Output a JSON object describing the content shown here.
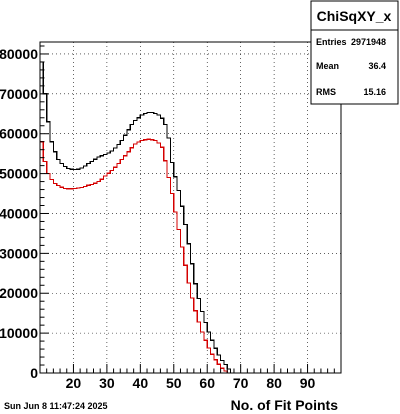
{
  "timestamp": "Sun Jun  8 11:47:24 2025",
  "stats_box": {
    "title": "ChiSqXY_x",
    "rows": [
      {
        "label": "Entries",
        "value": "2971948"
      },
      {
        "label": "Mean",
        "value": "36.4"
      },
      {
        "label": "RMS",
        "value": "15.16"
      }
    ]
  },
  "chart_data": {
    "type": "line",
    "title": "",
    "xlabel": "No. of Fit Points",
    "ylabel": "",
    "xlim": [
      10,
      100
    ],
    "ylim": [
      0,
      83000
    ],
    "xticks": [
      20,
      30,
      40,
      50,
      60,
      70,
      80,
      90
    ],
    "yticks": [
      0,
      10000,
      20000,
      30000,
      40000,
      50000,
      60000,
      70000,
      80000
    ],
    "grid": true,
    "legend": "none",
    "series": [
      {
        "color": "#000000",
        "style": "step",
        "x": [
          10,
          11,
          12,
          13,
          14,
          15,
          16,
          17,
          18,
          19,
          20,
          21,
          22,
          23,
          24,
          25,
          26,
          27,
          28,
          29,
          30,
          31,
          32,
          33,
          34,
          35,
          36,
          37,
          38,
          39,
          40,
          41,
          42,
          43,
          44,
          45,
          46,
          47,
          48,
          49,
          50,
          51,
          52,
          53,
          54,
          55,
          56,
          57,
          58,
          59,
          60,
          61,
          62,
          63,
          64,
          65,
          66,
          67,
          68,
          69,
          70,
          71,
          72,
          73,
          74,
          75,
          76,
          77,
          78,
          79,
          80
        ],
        "values": [
          78000,
          70000,
          63000,
          58000,
          55500,
          53500,
          52500,
          51800,
          51300,
          51100,
          51000,
          51100,
          51400,
          51900,
          52500,
          53000,
          53600,
          54200,
          54500,
          54800,
          55200,
          55700,
          56400,
          57300,
          58300,
          59600,
          61000,
          62300,
          63300,
          64000,
          64700,
          65100,
          65300,
          65300,
          65100,
          64700,
          63900,
          62300,
          58900,
          52800,
          49200,
          45800,
          41800,
          37200,
          32400,
          27400,
          22400,
          18700,
          15400,
          12700,
          10300,
          8200,
          6200,
          4500,
          3100,
          2100,
          1000,
          0,
          0,
          0,
          0,
          0,
          0,
          0,
          0,
          0,
          0,
          0,
          0,
          0,
          0
        ]
      },
      {
        "color": "#d40000",
        "style": "step",
        "x": [
          10,
          11,
          12,
          13,
          14,
          15,
          16,
          17,
          18,
          19,
          20,
          21,
          22,
          23,
          24,
          25,
          26,
          27,
          28,
          29,
          30,
          31,
          32,
          33,
          34,
          35,
          36,
          37,
          38,
          39,
          40,
          41,
          42,
          43,
          44,
          45,
          46,
          47,
          48,
          49,
          50,
          51,
          52,
          53,
          54,
          55,
          56,
          57,
          58,
          59,
          60,
          61,
          62,
          63,
          64,
          65,
          66,
          67,
          68,
          69,
          70,
          71,
          72,
          73,
          74,
          75,
          76,
          77,
          78,
          79,
          80
        ],
        "values": [
          58000,
          53000,
          50000,
          48500,
          47500,
          47000,
          46600,
          46300,
          46200,
          46200,
          46300,
          46400,
          46500,
          46800,
          47100,
          47300,
          47600,
          48000,
          48600,
          49400,
          50100,
          50800,
          51600,
          52500,
          53500,
          54500,
          55500,
          56500,
          57400,
          57900,
          58300,
          58500,
          58600,
          58500,
          58300,
          57700,
          56600,
          53200,
          49000,
          45000,
          40400,
          36000,
          31600,
          27000,
          22600,
          18800,
          15600,
          12800,
          10300,
          8200,
          6300,
          4700,
          3300,
          2200,
          1200,
          500,
          0,
          0,
          0,
          0,
          0,
          0,
          0,
          0,
          0,
          0,
          0,
          0,
          0,
          0,
          0
        ]
      }
    ]
  }
}
